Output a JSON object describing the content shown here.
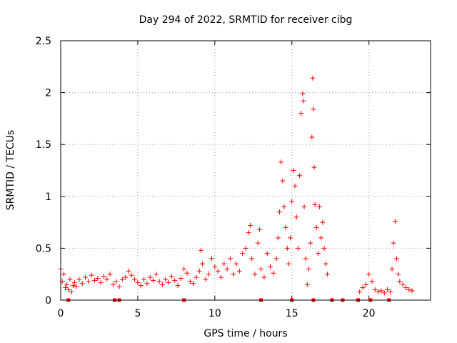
{
  "chart_data": {
    "type": "scatter",
    "title": "Day 294 of 2022, SRMTID for receiver cibg",
    "xlabel": "GPS time / hours",
    "ylabel": "SRMTID / TECUs",
    "xlim": [
      0,
      24
    ],
    "ylim": [
      0,
      2.5
    ],
    "x_ticks": [
      0,
      5,
      10,
      15,
      20
    ],
    "x_tick_labels": [
      "0",
      "5",
      "10",
      "15",
      "20"
    ],
    "y_ticks": [
      0,
      0.5,
      1,
      1.5,
      2,
      2.5
    ],
    "y_tick_labels": [
      "0",
      "0.5",
      "1",
      "1.5",
      "2",
      "2.5"
    ],
    "grid": true,
    "marker": "+",
    "color": "#ff0000",
    "series": [
      {
        "name": "SRMTID",
        "points": [
          [
            0.0,
            0.3
          ],
          [
            0.1,
            0.18
          ],
          [
            0.2,
            0.25
          ],
          [
            0.3,
            0.12
          ],
          [
            0.4,
            0.15
          ],
          [
            0.5,
            0.1
          ],
          [
            0.6,
            0.2
          ],
          [
            0.7,
            0.08
          ],
          [
            0.8,
            0.14
          ],
          [
            0.9,
            0.17
          ],
          [
            1.0,
            0.13
          ],
          [
            1.2,
            0.2
          ],
          [
            1.4,
            0.16
          ],
          [
            1.6,
            0.22
          ],
          [
            1.8,
            0.18
          ],
          [
            2.0,
            0.24
          ],
          [
            2.2,
            0.19
          ],
          [
            2.4,
            0.21
          ],
          [
            2.6,
            0.17
          ],
          [
            2.8,
            0.23
          ],
          [
            3.0,
            0.2
          ],
          [
            3.2,
            0.25
          ],
          [
            3.4,
            0.15
          ],
          [
            3.6,
            0.18
          ],
          [
            3.8,
            0.13
          ],
          [
            4.0,
            0.2
          ],
          [
            4.2,
            0.22
          ],
          [
            4.4,
            0.28
          ],
          [
            4.6,
            0.24
          ],
          [
            4.8,
            0.2
          ],
          [
            5.0,
            0.17
          ],
          [
            5.2,
            0.14
          ],
          [
            5.4,
            0.2
          ],
          [
            5.6,
            0.16
          ],
          [
            5.8,
            0.22
          ],
          [
            6.0,
            0.19
          ],
          [
            6.2,
            0.25
          ],
          [
            6.4,
            0.18
          ],
          [
            6.6,
            0.15
          ],
          [
            6.8,
            0.2
          ],
          [
            7.0,
            0.17
          ],
          [
            7.2,
            0.23
          ],
          [
            7.4,
            0.19
          ],
          [
            7.6,
            0.14
          ],
          [
            7.8,
            0.21
          ],
          [
            8.0,
            0.3
          ],
          [
            8.2,
            0.26
          ],
          [
            8.4,
            0.18
          ],
          [
            8.6,
            0.16
          ],
          [
            8.8,
            0.22
          ],
          [
            9.0,
            0.28
          ],
          [
            9.1,
            0.48
          ],
          [
            9.2,
            0.35
          ],
          [
            9.4,
            0.2
          ],
          [
            9.6,
            0.25
          ],
          [
            9.8,
            0.4
          ],
          [
            10.0,
            0.32
          ],
          [
            10.2,
            0.28
          ],
          [
            10.4,
            0.22
          ],
          [
            10.6,
            0.35
          ],
          [
            10.8,
            0.3
          ],
          [
            11.0,
            0.4
          ],
          [
            11.2,
            0.25
          ],
          [
            11.4,
            0.35
          ],
          [
            11.6,
            0.28
          ],
          [
            11.8,
            0.45
          ],
          [
            12.0,
            0.5
          ],
          [
            12.2,
            0.65
          ],
          [
            12.3,
            0.72
          ],
          [
            12.4,
            0.4
          ],
          [
            12.6,
            0.25
          ],
          [
            12.8,
            0.55
          ],
          [
            12.9,
            0.68
          ],
          [
            13.0,
            0.3
          ],
          [
            13.2,
            0.22
          ],
          [
            13.4,
            0.45
          ],
          [
            13.6,
            0.32
          ],
          [
            13.8,
            0.26
          ],
          [
            14.0,
            0.4
          ],
          [
            14.1,
            0.6
          ],
          [
            14.2,
            0.85
          ],
          [
            14.3,
            1.33
          ],
          [
            14.4,
            1.15
          ],
          [
            14.5,
            0.9
          ],
          [
            14.6,
            0.7
          ],
          [
            14.7,
            0.5
          ],
          [
            14.8,
            0.35
          ],
          [
            14.9,
            0.6
          ],
          [
            15.0,
            0.95
          ],
          [
            15.1,
            1.25
          ],
          [
            15.2,
            1.1
          ],
          [
            15.3,
            0.8
          ],
          [
            15.4,
            0.5
          ],
          [
            15.5,
            1.2
          ],
          [
            15.6,
            1.8
          ],
          [
            15.7,
            1.99
          ],
          [
            15.75,
            1.92
          ],
          [
            15.8,
            0.9
          ],
          [
            15.9,
            0.4
          ],
          [
            16.0,
            0.15
          ],
          [
            16.1,
            0.3
          ],
          [
            16.2,
            0.55
          ],
          [
            16.3,
            1.57
          ],
          [
            16.35,
            2.14
          ],
          [
            16.4,
            1.84
          ],
          [
            16.45,
            1.28
          ],
          [
            16.5,
            0.92
          ],
          [
            16.6,
            0.7
          ],
          [
            16.7,
            0.45
          ],
          [
            16.8,
            0.9
          ],
          [
            16.9,
            0.6
          ],
          [
            17.0,
            0.75
          ],
          [
            17.1,
            0.5
          ],
          [
            17.2,
            0.35
          ],
          [
            17.3,
            0.25
          ],
          [
            19.4,
            0.08
          ],
          [
            19.6,
            0.12
          ],
          [
            19.8,
            0.15
          ],
          [
            20.0,
            0.25
          ],
          [
            20.2,
            0.18
          ],
          [
            20.4,
            0.1
          ],
          [
            20.6,
            0.08
          ],
          [
            20.8,
            0.09
          ],
          [
            21.0,
            0.07
          ],
          [
            21.2,
            0.1
          ],
          [
            21.4,
            0.08
          ],
          [
            21.5,
            0.3
          ],
          [
            21.6,
            0.55
          ],
          [
            21.7,
            0.76
          ],
          [
            21.8,
            0.4
          ],
          [
            21.9,
            0.25
          ],
          [
            22.0,
            0.18
          ],
          [
            22.2,
            0.15
          ],
          [
            22.4,
            0.12
          ],
          [
            22.6,
            0.1
          ],
          [
            22.8,
            0.09
          ]
        ]
      }
    ],
    "baseline_markers_x": [
      0.5,
      3.5,
      3.8,
      8.0,
      13.0,
      15.0,
      16.4,
      17.6,
      18.3,
      19.3,
      20.1,
      21.3
    ]
  }
}
